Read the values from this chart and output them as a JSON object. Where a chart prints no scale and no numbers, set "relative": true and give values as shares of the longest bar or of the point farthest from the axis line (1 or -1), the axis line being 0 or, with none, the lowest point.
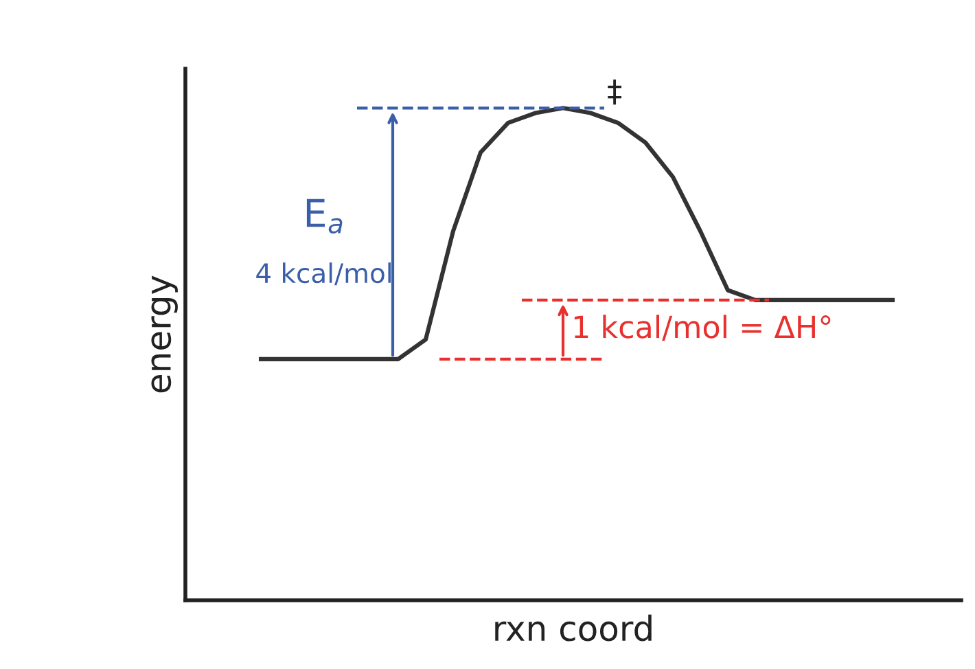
{
  "chart_data": {
    "type": "line",
    "relative": true,
    "xlabel": "rxn coord",
    "ylabel": "energy",
    "categories": [
      null,
      null,
      null,
      null,
      null,
      null,
      null,
      null,
      null,
      null,
      null,
      null,
      null,
      null,
      null,
      null,
      null,
      null,
      null,
      null,
      null,
      null,
      null,
      null
    ],
    "series": [
      {
        "color": "#333333",
        "values": [
          0.49,
          0.49,
          0.49,
          0.49,
          0.49,
          0.49,
          0.53,
          0.75,
          0.91,
          0.97,
          0.99,
          1,
          0.99,
          0.97,
          0.93,
          0.86,
          0.75,
          0.63,
          0.61,
          0.61,
          0.61,
          0.61,
          0.61,
          0.61
        ]
      }
    ],
    "ref_lines": [
      {
        "axis": "y",
        "value": 1,
        "color": "#3a5fa8",
        "line_style": "dashed"
      },
      {
        "axis": "y",
        "value": 0.61,
        "color": "#e8312f",
        "line_style": "dashed"
      },
      {
        "axis": "y",
        "value": 0.49,
        "color": "#e8312f",
        "line_style": "dashed"
      }
    ],
    "annotations": [
      "‡",
      "E$_{a}$",
      "4 kcal/mol",
      "1 kcal/mol = ΔH°"
    ],
    "grid": false,
    "legend": false,
    "marker": "none",
    "line_style": "solid"
  }
}
